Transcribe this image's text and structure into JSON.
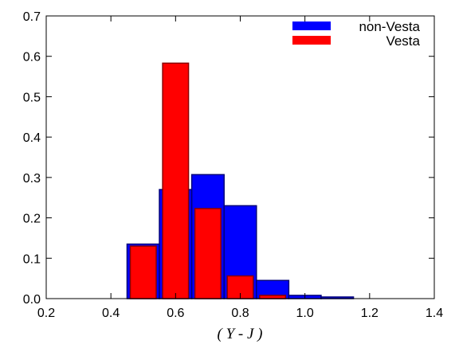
{
  "chart_data": {
    "type": "bar",
    "title": "",
    "xlabel": "( Y - J )",
    "ylabel": "",
    "xlim": [
      0.2,
      1.4
    ],
    "ylim": [
      0,
      0.7
    ],
    "xticks": [
      "0.2",
      "0.4",
      "0.6",
      "0.8",
      "1.0",
      "1.2",
      "1.4"
    ],
    "yticks": [
      "0.0",
      "0.1",
      "0.2",
      "0.3",
      "0.4",
      "0.5",
      "0.6",
      "0.7"
    ],
    "grid": false,
    "legend_position": "top-right",
    "series": [
      {
        "name": "non-Vesta",
        "color": "#0000ff",
        "bins": [
          {
            "x0": 0.45,
            "x1": 0.55,
            "value": 0.135
          },
          {
            "x0": 0.55,
            "x1": 0.65,
            "value": 0.27
          },
          {
            "x0": 0.65,
            "x1": 0.75,
            "value": 0.307
          },
          {
            "x0": 0.75,
            "x1": 0.85,
            "value": 0.23
          },
          {
            "x0": 0.85,
            "x1": 0.95,
            "value": 0.045
          },
          {
            "x0": 0.95,
            "x1": 1.05,
            "value": 0.008
          },
          {
            "x0": 1.05,
            "x1": 1.15,
            "value": 0.004
          }
        ]
      },
      {
        "name": "Vesta",
        "color": "#ff0000",
        "bins": [
          {
            "x0": 0.46,
            "x1": 0.54,
            "value": 0.13
          },
          {
            "x0": 0.56,
            "x1": 0.64,
            "value": 0.583
          },
          {
            "x0": 0.66,
            "x1": 0.74,
            "value": 0.223
          },
          {
            "x0": 0.76,
            "x1": 0.84,
            "value": 0.056
          },
          {
            "x0": 0.86,
            "x1": 0.94,
            "value": 0.008
          }
        ]
      }
    ]
  }
}
